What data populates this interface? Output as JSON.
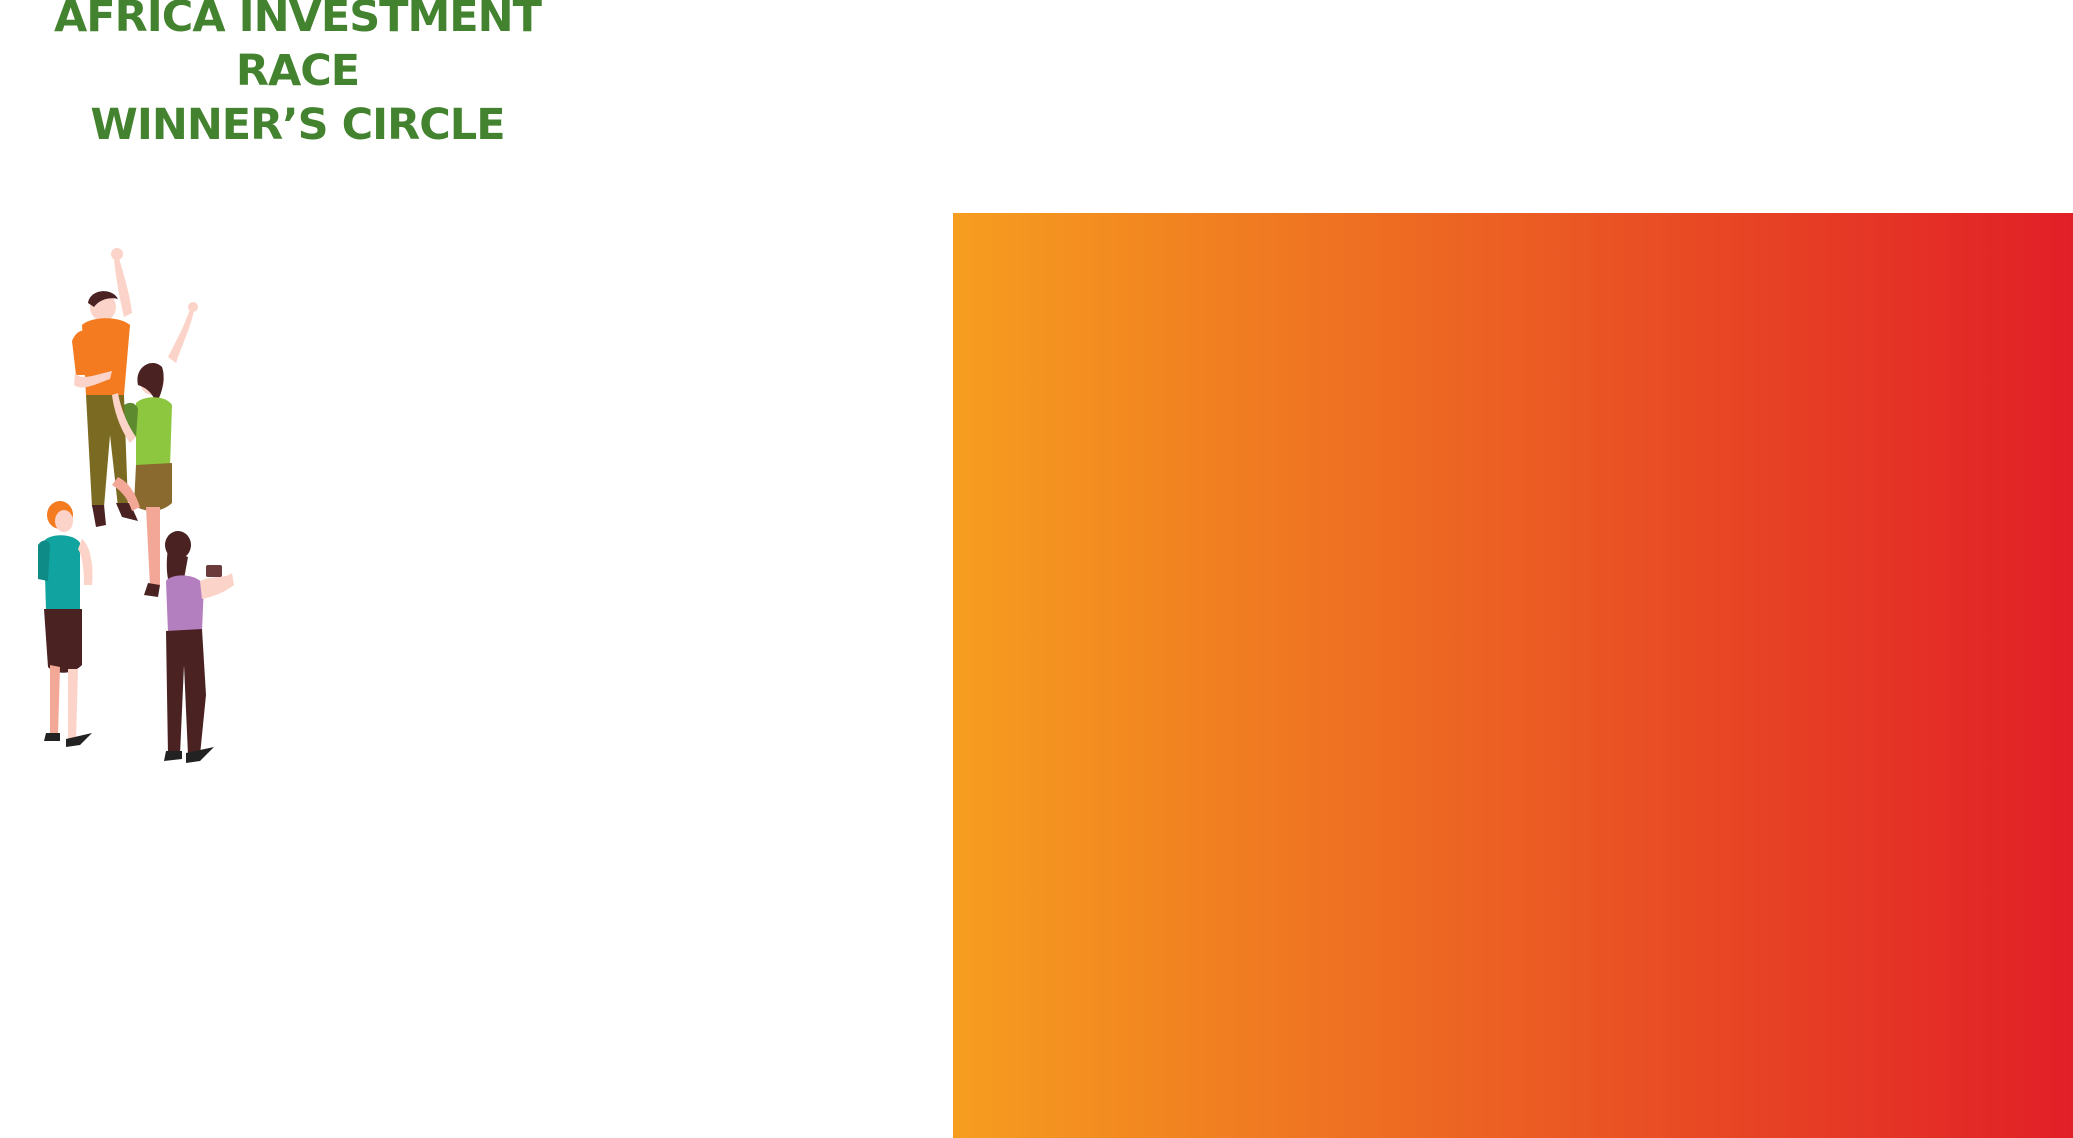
{
  "header": {
    "title_line1": "AFRICA INVESTMENT RACE",
    "title_line2": "WINNER’S CIRCLE",
    "title_color": "#43832f"
  },
  "illustration": {
    "icon": "celebrating-people-illustration"
  },
  "panel": {
    "gradient_start": "#f69d1f",
    "gradient_end": "#e11f27"
  }
}
